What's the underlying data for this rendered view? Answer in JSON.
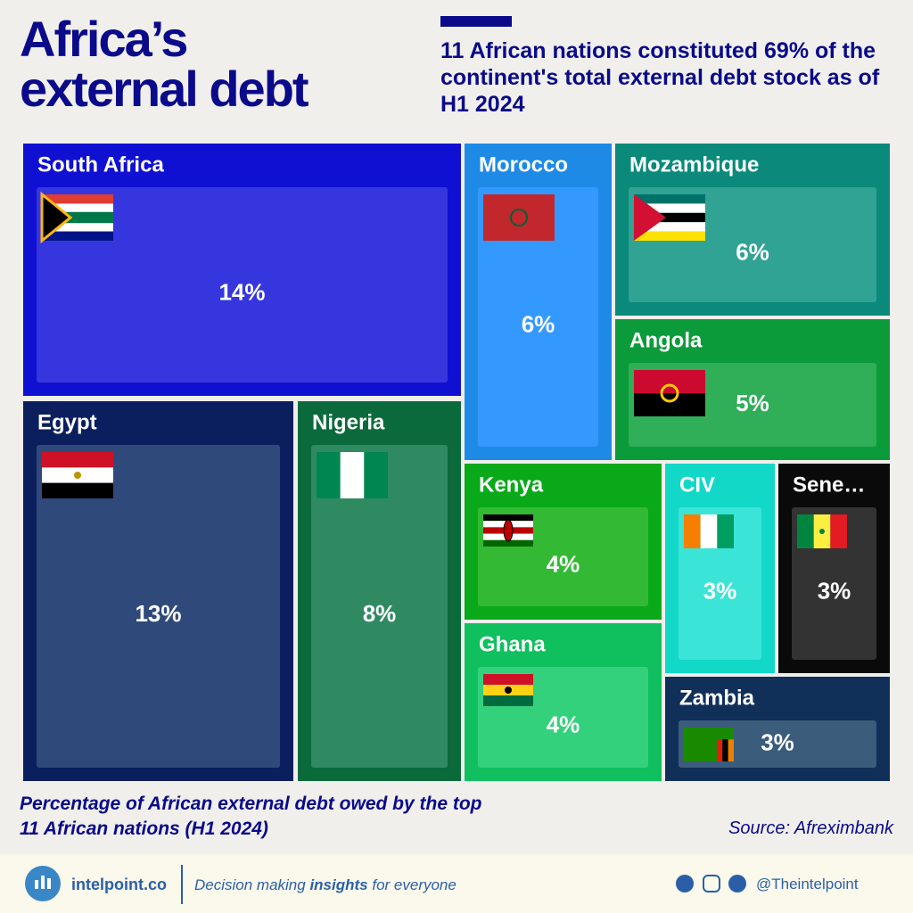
{
  "chart_data": {
    "type": "treemap",
    "title": "Africa’s external debt",
    "subtitle": "11 African nations constituted 69% of the continent's total external debt stock as of H1 2024",
    "caption": "Percentage of African external debt owed by the top 11 African nations (H1 2024)",
    "source": "Source: Afreximbank",
    "categories": [
      "South Africa",
      "Egypt",
      "Nigeria",
      "Morocco",
      "Mozambique",
      "Angola",
      "Kenya",
      "Ghana",
      "CIV",
      "Sene…",
      "Zambia"
    ],
    "values": [
      14,
      13,
      8,
      6,
      6,
      5,
      4,
      4,
      3,
      3,
      3
    ],
    "value_labels": [
      "14%",
      "13%",
      "8%",
      "6%",
      "6%",
      "5%",
      "4%",
      "4%",
      "3%",
      "3%",
      "3%"
    ],
    "colors": [
      "#1010d2",
      "#0b1f5e",
      "#0b6a3c",
      "#1e8ae6",
      "#0b8a7b",
      "#0b9b3b",
      "#0aa91a",
      "#10bf5e",
      "#12d8c8",
      "#0a0a0a",
      "#10305a"
    ],
    "inner_colors": [
      "#3636de",
      "#2f4a7a",
      "#2f8a62",
      "#3399ff",
      "#30a394",
      "#30ae58",
      "#34b934",
      "#34d17c",
      "#3ae4d6",
      "#333333",
      "#3b5c7b"
    ]
  },
  "footer": {
    "brand": "intelpoint.co",
    "tagline": [
      "Decision making ",
      "insights",
      " for everyone"
    ],
    "handle": "@Theintelpoint"
  }
}
